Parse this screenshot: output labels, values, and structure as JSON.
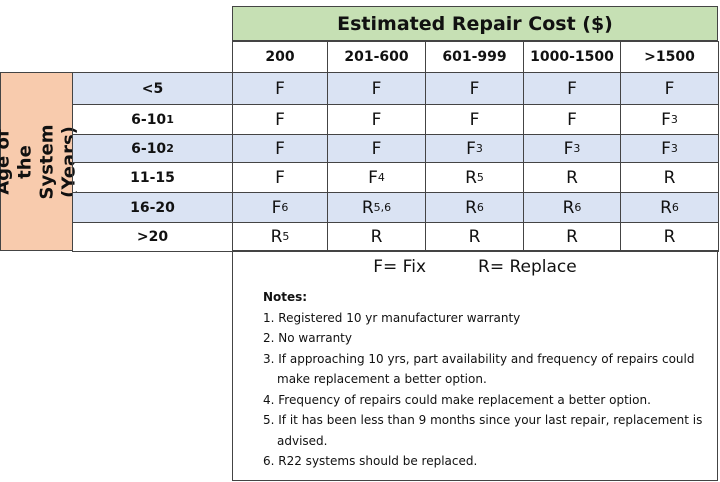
{
  "header": {
    "title": "Estimated Repair Cost ($)",
    "columns": [
      "200",
      "201-600",
      "601-999",
      "1000-1500",
      ">1500"
    ]
  },
  "row_header": "Age of the System (Years)",
  "table": {
    "rows": [
      {
        "label": "<5",
        "cells": [
          "F",
          "F",
          "F",
          "F",
          "F"
        ]
      },
      {
        "label": {
          "text": "6-10",
          "sup": "1"
        },
        "cells": [
          "F",
          "F",
          "F",
          "F",
          {
            "text": "F",
            "sup": "3"
          }
        ]
      },
      {
        "label": {
          "text": "6-10",
          "sup": "2"
        },
        "cells": [
          "F",
          "F",
          {
            "text": "F",
            "sup": "3"
          },
          {
            "text": "F",
            "sup": "3"
          },
          {
            "text": "F",
            "sup": "3"
          }
        ]
      },
      {
        "label": "11-15",
        "cells": [
          "F",
          {
            "text": "F",
            "sup": "4"
          },
          {
            "text": "R",
            "sup": "5"
          },
          "R",
          "R"
        ]
      },
      {
        "label": "16-20",
        "cells": [
          {
            "text": "F",
            "sup": "6"
          },
          {
            "text": "R",
            "sup": "5,6"
          },
          {
            "text": "R",
            "sup": "6"
          },
          {
            "text": "R",
            "sup": "6"
          },
          {
            "text": "R",
            "sup": "6"
          }
        ]
      },
      {
        "label": ">20",
        "cells": [
          {
            "text": "R",
            "sup": "5"
          },
          "R",
          "R",
          "R",
          "R"
        ]
      }
    ]
  },
  "legend": [
    "F= Fix",
    "R= Replace"
  ],
  "notes": {
    "title": "Notes:",
    "items": [
      "1. Registered 10 yr manufacturer warranty",
      "2. No warranty",
      "3. If approaching 10 yrs, part availability and frequency of repairs could make replacement a better option.",
      "4. Frequency of repairs could make replacement a better option.",
      "5. If it has been less than 9 months since your last repair, replacement is advised.",
      "6. R22 systems should be replaced."
    ]
  }
}
